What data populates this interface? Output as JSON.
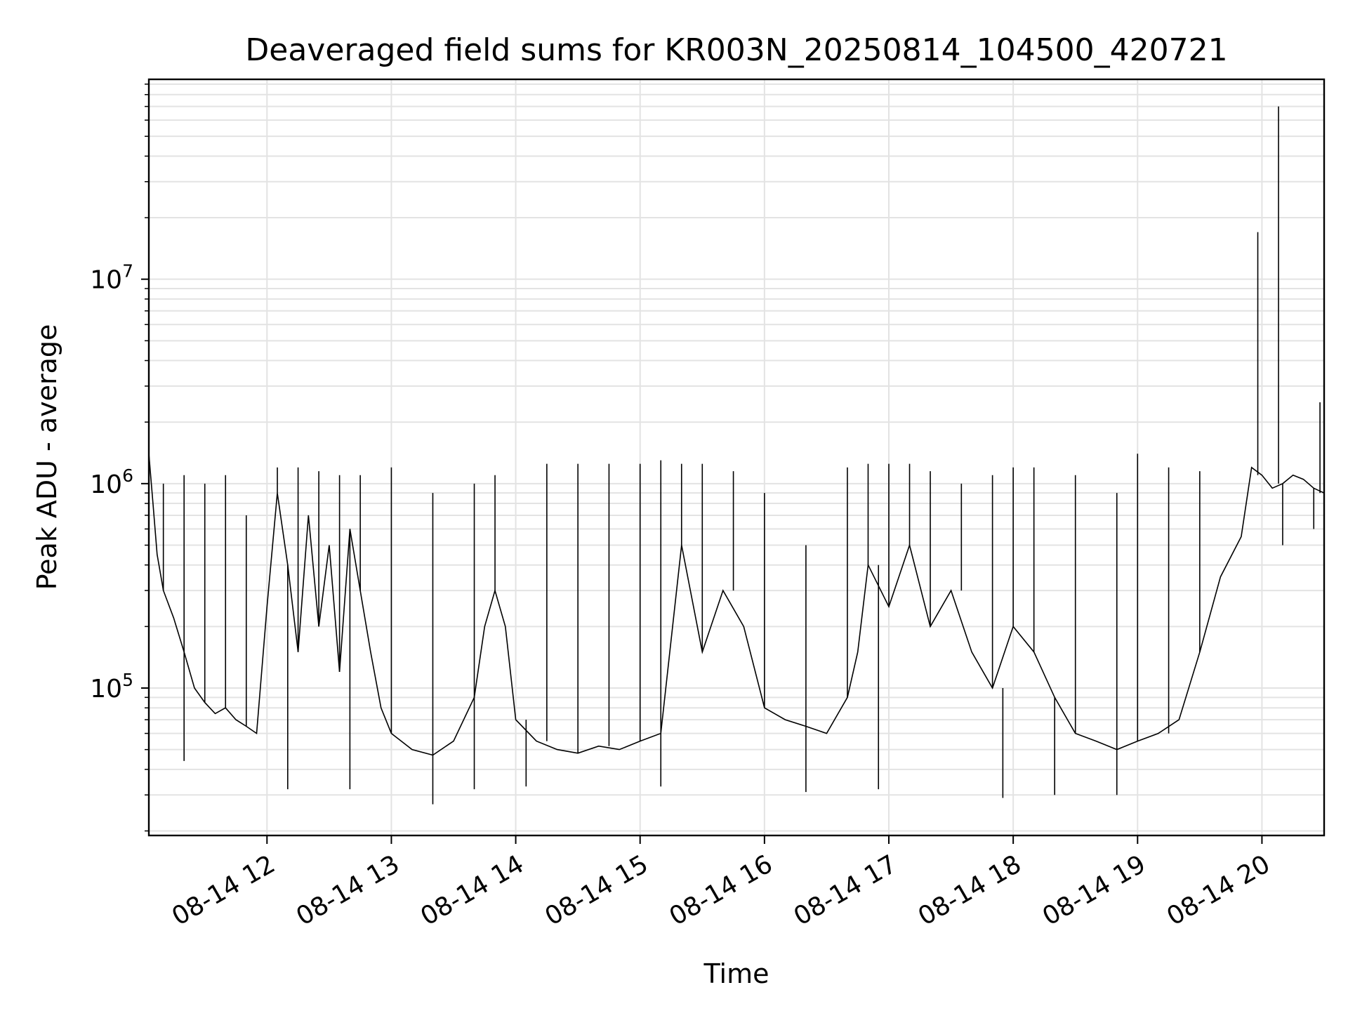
{
  "chart_data": {
    "type": "line",
    "title": "Deaveraged field sums for KR003N_20250814_104500_420721",
    "xlabel": "Time",
    "ylabel": "Peak ADU - average",
    "yscale": "log",
    "ylim": [
      19000,
      95000000
    ],
    "xlim": [
      "2025-08-14 11:03",
      "2025-08-14 20:30"
    ],
    "grid": true,
    "x_ticks": [
      {
        "label": "08-14 12",
        "time": "2025-08-14 12:00"
      },
      {
        "label": "08-14 13",
        "time": "2025-08-14 13:00"
      },
      {
        "label": "08-14 14",
        "time": "2025-08-14 14:00"
      },
      {
        "label": "08-14 15",
        "time": "2025-08-14 15:00"
      },
      {
        "label": "08-14 16",
        "time": "2025-08-14 16:00"
      },
      {
        "label": "08-14 17",
        "time": "2025-08-14 17:00"
      },
      {
        "label": "08-14 18",
        "time": "2025-08-14 18:00"
      },
      {
        "label": "08-14 19",
        "time": "2025-08-14 19:00"
      },
      {
        "label": "08-14 20",
        "time": "2025-08-14 20:00"
      }
    ],
    "y_ticks": [
      {
        "base": "10",
        "exp": "5",
        "value": 100000
      },
      {
        "base": "10",
        "exp": "6",
        "value": 1000000
      },
      {
        "base": "10",
        "exp": "7",
        "value": 10000000
      }
    ],
    "series": [
      {
        "color": "#000000",
        "points": [
          [
            "2025-08-14 11:03",
            1400000
          ],
          [
            "2025-08-14 11:05",
            800000
          ],
          [
            "2025-08-14 11:07",
            450000
          ],
          [
            "2025-08-14 11:10",
            300000
          ],
          [
            "2025-08-14 11:15",
            220000
          ],
          [
            "2025-08-14 11:20",
            150000
          ],
          [
            "2025-08-14 11:25",
            100000
          ],
          [
            "2025-08-14 11:30",
            85000
          ],
          [
            "2025-08-14 11:35",
            75000
          ],
          [
            "2025-08-14 11:40",
            80000
          ],
          [
            "2025-08-14 11:45",
            70000
          ],
          [
            "2025-08-14 11:50",
            65000
          ],
          [
            "2025-08-14 11:55",
            60000
          ],
          [
            "2025-08-14 12:00",
            250000
          ],
          [
            "2025-08-14 12:05",
            900000
          ],
          [
            "2025-08-14 12:10",
            400000
          ],
          [
            "2025-08-14 12:15",
            150000
          ],
          [
            "2025-08-14 12:20",
            700000
          ],
          [
            "2025-08-14 12:25",
            200000
          ],
          [
            "2025-08-14 12:30",
            500000
          ],
          [
            "2025-08-14 12:35",
            120000
          ],
          [
            "2025-08-14 12:40",
            600000
          ],
          [
            "2025-08-14 12:45",
            300000
          ],
          [
            "2025-08-14 12:50",
            150000
          ],
          [
            "2025-08-14 12:55",
            80000
          ],
          [
            "2025-08-14 13:00",
            60000
          ],
          [
            "2025-08-14 13:10",
            50000
          ],
          [
            "2025-08-14 13:20",
            47000
          ],
          [
            "2025-08-14 13:30",
            55000
          ],
          [
            "2025-08-14 13:40",
            90000
          ],
          [
            "2025-08-14 13:45",
            200000
          ],
          [
            "2025-08-14 13:50",
            300000
          ],
          [
            "2025-08-14 13:55",
            200000
          ],
          [
            "2025-08-14 14:00",
            70000
          ],
          [
            "2025-08-14 14:10",
            55000
          ],
          [
            "2025-08-14 14:20",
            50000
          ],
          [
            "2025-08-14 14:30",
            48000
          ],
          [
            "2025-08-14 14:40",
            52000
          ],
          [
            "2025-08-14 14:50",
            50000
          ],
          [
            "2025-08-14 15:00",
            55000
          ],
          [
            "2025-08-14 15:10",
            60000
          ],
          [
            "2025-08-14 15:20",
            500000
          ],
          [
            "2025-08-14 15:30",
            150000
          ],
          [
            "2025-08-14 15:40",
            300000
          ],
          [
            "2025-08-14 15:50",
            200000
          ],
          [
            "2025-08-14 16:00",
            80000
          ],
          [
            "2025-08-14 16:10",
            70000
          ],
          [
            "2025-08-14 16:20",
            65000
          ],
          [
            "2025-08-14 16:30",
            60000
          ],
          [
            "2025-08-14 16:40",
            90000
          ],
          [
            "2025-08-14 16:45",
            150000
          ],
          [
            "2025-08-14 16:50",
            400000
          ],
          [
            "2025-08-14 17:00",
            250000
          ],
          [
            "2025-08-14 17:10",
            500000
          ],
          [
            "2025-08-14 17:20",
            200000
          ],
          [
            "2025-08-14 17:30",
            300000
          ],
          [
            "2025-08-14 17:40",
            150000
          ],
          [
            "2025-08-14 17:50",
            100000
          ],
          [
            "2025-08-14 18:00",
            200000
          ],
          [
            "2025-08-14 18:10",
            150000
          ],
          [
            "2025-08-14 18:20",
            90000
          ],
          [
            "2025-08-14 18:30",
            60000
          ],
          [
            "2025-08-14 18:40",
            55000
          ],
          [
            "2025-08-14 18:50",
            50000
          ],
          [
            "2025-08-14 19:00",
            55000
          ],
          [
            "2025-08-14 19:10",
            60000
          ],
          [
            "2025-08-14 19:20",
            70000
          ],
          [
            "2025-08-14 19:30",
            150000
          ],
          [
            "2025-08-14 19:40",
            350000
          ],
          [
            "2025-08-14 19:50",
            550000
          ],
          [
            "2025-08-14 19:55",
            1200000
          ],
          [
            "2025-08-14 20:00",
            1100000
          ],
          [
            "2025-08-14 20:05",
            950000
          ],
          [
            "2025-08-14 20:10",
            1000000
          ],
          [
            "2025-08-14 20:15",
            1100000
          ],
          [
            "2025-08-14 20:20",
            1050000
          ],
          [
            "2025-08-14 20:25",
            950000
          ],
          [
            "2025-08-14 20:30",
            900000
          ]
        ]
      }
    ],
    "spikes": [
      [
        "2025-08-14 11:10",
        1000000
      ],
      [
        "2025-08-14 11:20",
        1100000
      ],
      [
        "2025-08-14 11:30",
        1000000
      ],
      [
        "2025-08-14 11:40",
        1100000
      ],
      [
        "2025-08-14 11:50",
        700000
      ],
      [
        "2025-08-14 12:05",
        1200000
      ],
      [
        "2025-08-14 12:15",
        1200000
      ],
      [
        "2025-08-14 12:25",
        1150000
      ],
      [
        "2025-08-14 12:35",
        1100000
      ],
      [
        "2025-08-14 12:45",
        1100000
      ],
      [
        "2025-08-14 13:00",
        1200000
      ],
      [
        "2025-08-14 13:20",
        900000
      ],
      [
        "2025-08-14 13:40",
        1000000
      ],
      [
        "2025-08-14 13:50",
        1100000
      ],
      [
        "2025-08-14 14:15",
        1250000
      ],
      [
        "2025-08-14 14:30",
        1250000
      ],
      [
        "2025-08-14 14:45",
        1250000
      ],
      [
        "2025-08-14 15:00",
        1250000
      ],
      [
        "2025-08-14 15:10",
        1300000
      ],
      [
        "2025-08-14 15:20",
        1250000
      ],
      [
        "2025-08-14 15:30",
        1250000
      ],
      [
        "2025-08-14 15:45",
        1150000
      ],
      [
        "2025-08-14 16:00",
        900000
      ],
      [
        "2025-08-14 16:20",
        500000
      ],
      [
        "2025-08-14 16:40",
        1200000
      ],
      [
        "2025-08-14 16:50",
        1250000
      ],
      [
        "2025-08-14 17:00",
        1250000
      ],
      [
        "2025-08-14 17:10",
        1250000
      ],
      [
        "2025-08-14 17:20",
        1150000
      ],
      [
        "2025-08-14 17:35",
        1000000
      ],
      [
        "2025-08-14 17:50",
        1100000
      ],
      [
        "2025-08-14 18:00",
        1200000
      ],
      [
        "2025-08-14 18:10",
        1200000
      ],
      [
        "2025-08-14 18:30",
        1100000
      ],
      [
        "2025-08-14 18:50",
        900000
      ],
      [
        "2025-08-14 19:00",
        1400000
      ],
      [
        "2025-08-14 19:15",
        1200000
      ],
      [
        "2025-08-14 19:30",
        1150000
      ],
      [
        "2025-08-14 19:58",
        17000000
      ],
      [
        "2025-08-14 20:08",
        70000000
      ],
      [
        "2025-08-14 20:28",
        2500000
      ]
    ],
    "dips": [
      [
        "2025-08-14 11:20",
        44000
      ],
      [
        "2025-08-14 12:10",
        32000
      ],
      [
        "2025-08-14 12:40",
        32000
      ],
      [
        "2025-08-14 13:20",
        27000
      ],
      [
        "2025-08-14 13:40",
        32000
      ],
      [
        "2025-08-14 14:05",
        33000
      ],
      [
        "2025-08-14 15:10",
        33000
      ],
      [
        "2025-08-14 16:20",
        31000
      ],
      [
        "2025-08-14 16:55",
        32000
      ],
      [
        "2025-08-14 17:55",
        29000
      ],
      [
        "2025-08-14 18:20",
        30000
      ],
      [
        "2025-08-14 18:50",
        30000
      ],
      [
        "2025-08-14 20:10",
        500000
      ],
      [
        "2025-08-14 20:25",
        600000
      ]
    ]
  }
}
